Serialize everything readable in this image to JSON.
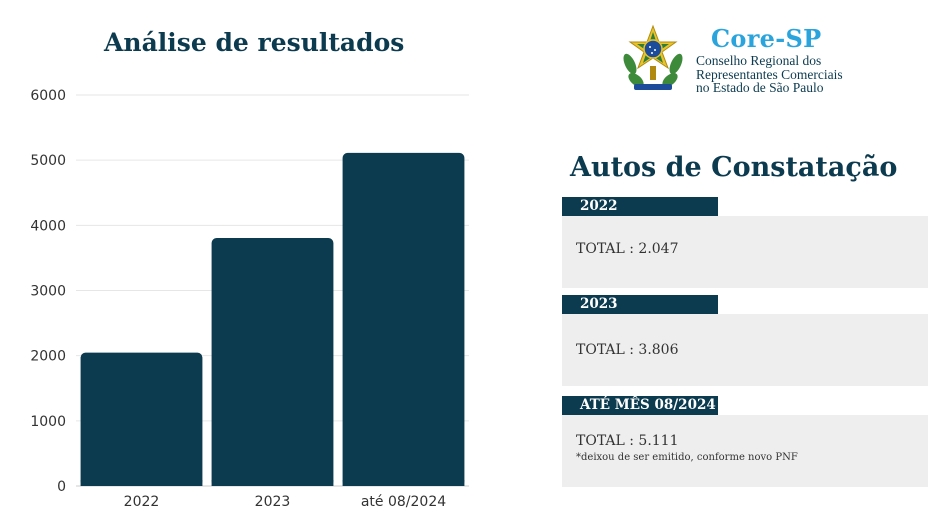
{
  "chart_data": {
    "type": "bar",
    "title": "Análise de resultados",
    "categories": [
      "2022",
      "2023",
      "até 08/2024"
    ],
    "values": [
      2047,
      3806,
      5111
    ],
    "ylim": [
      0,
      6000
    ],
    "yticks": [
      "0",
      "1000",
      "2000",
      "3000",
      "4000",
      "5000",
      "6000"
    ],
    "xlabel": "",
    "ylabel": "",
    "grid": true,
    "bar_color": "#0c3b50"
  },
  "logo": {
    "name": "Core-SP",
    "subtitle_lines": [
      "Conselho Regional dos",
      "Representantes Comerciais",
      "no Estado de São Paulo"
    ],
    "name_color": "#2aa4dc"
  },
  "panel": {
    "title": "Autos de Constatação",
    "entries": [
      {
        "label": "2022",
        "total": "TOTAL : 2.047"
      },
      {
        "label": "2023",
        "total": "TOTAL : 3.806"
      },
      {
        "label": "ATÉ MÊS 08/2024",
        "total": "TOTAL : 5.111",
        "note": "*deixou de ser emitido, conforme novo PNF"
      }
    ]
  }
}
